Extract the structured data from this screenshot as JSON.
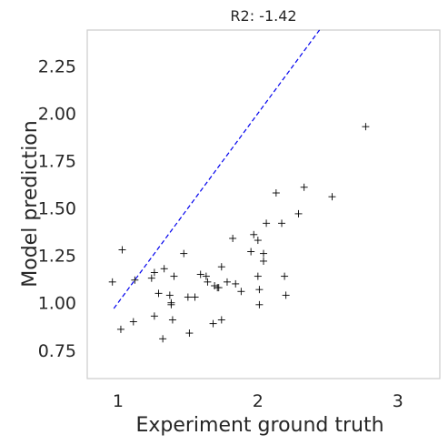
{
  "chart_data": {
    "type": "scatter",
    "title": "R2: -1.42",
    "xlabel": "Experiment ground truth",
    "ylabel": "Model prediction",
    "xlim": [
      0.78,
      3.3
    ],
    "ylim": [
      0.6,
      2.44
    ],
    "xticks": [
      1,
      2,
      3
    ],
    "xtick_labels": [
      "1",
      "2",
      "3"
    ],
    "yticks": [
      0.75,
      1.0,
      1.25,
      1.5,
      1.75,
      2.0,
      2.25
    ],
    "ytick_labels": [
      "0.75",
      "1.00",
      "1.25",
      "1.50",
      "1.75",
      "2.00",
      "2.25"
    ],
    "grid": false,
    "marker": "+",
    "marker_color": "#000000",
    "reference_line": {
      "style": "dashed",
      "color": "#0000ee",
      "x": [
        0.97,
        2.44
      ],
      "y": [
        0.97,
        2.44
      ]
    },
    "points": [
      [
        0.96,
        1.11
      ],
      [
        1.03,
        1.28
      ],
      [
        1.02,
        0.86
      ],
      [
        1.11,
        0.9
      ],
      [
        1.12,
        1.12
      ],
      [
        1.24,
        1.13
      ],
      [
        1.26,
        1.16
      ],
      [
        1.26,
        0.93
      ],
      [
        1.29,
        1.05
      ],
      [
        1.32,
        0.81
      ],
      [
        1.33,
        1.18
      ],
      [
        1.37,
        1.04
      ],
      [
        1.38,
        0.99
      ],
      [
        1.38,
        1.0
      ],
      [
        1.39,
        0.91
      ],
      [
        1.4,
        1.14
      ],
      [
        1.47,
        1.26
      ],
      [
        1.5,
        1.03
      ],
      [
        1.51,
        0.84
      ],
      [
        1.55,
        1.03
      ],
      [
        1.59,
        1.15
      ],
      [
        1.63,
        1.14
      ],
      [
        1.64,
        1.11
      ],
      [
        1.68,
        0.89
      ],
      [
        1.69,
        1.09
      ],
      [
        1.71,
        1.08
      ],
      [
        1.72,
        1.08
      ],
      [
        1.74,
        1.19
      ],
      [
        1.74,
        0.91
      ],
      [
        1.78,
        1.11
      ],
      [
        1.82,
        1.34
      ],
      [
        1.84,
        1.1
      ],
      [
        1.88,
        1.06
      ],
      [
        1.95,
        1.27
      ],
      [
        1.97,
        1.36
      ],
      [
        2.0,
        1.14
      ],
      [
        2.0,
        1.33
      ],
      [
        2.01,
        0.99
      ],
      [
        2.01,
        1.07
      ],
      [
        2.04,
        1.22
      ],
      [
        2.04,
        1.26
      ],
      [
        2.06,
        1.42
      ],
      [
        2.13,
        1.58
      ],
      [
        2.17,
        1.42
      ],
      [
        2.19,
        1.14
      ],
      [
        2.2,
        1.04
      ],
      [
        2.29,
        1.47
      ],
      [
        2.33,
        1.61
      ],
      [
        2.53,
        1.56
      ],
      [
        2.77,
        1.93
      ]
    ]
  }
}
